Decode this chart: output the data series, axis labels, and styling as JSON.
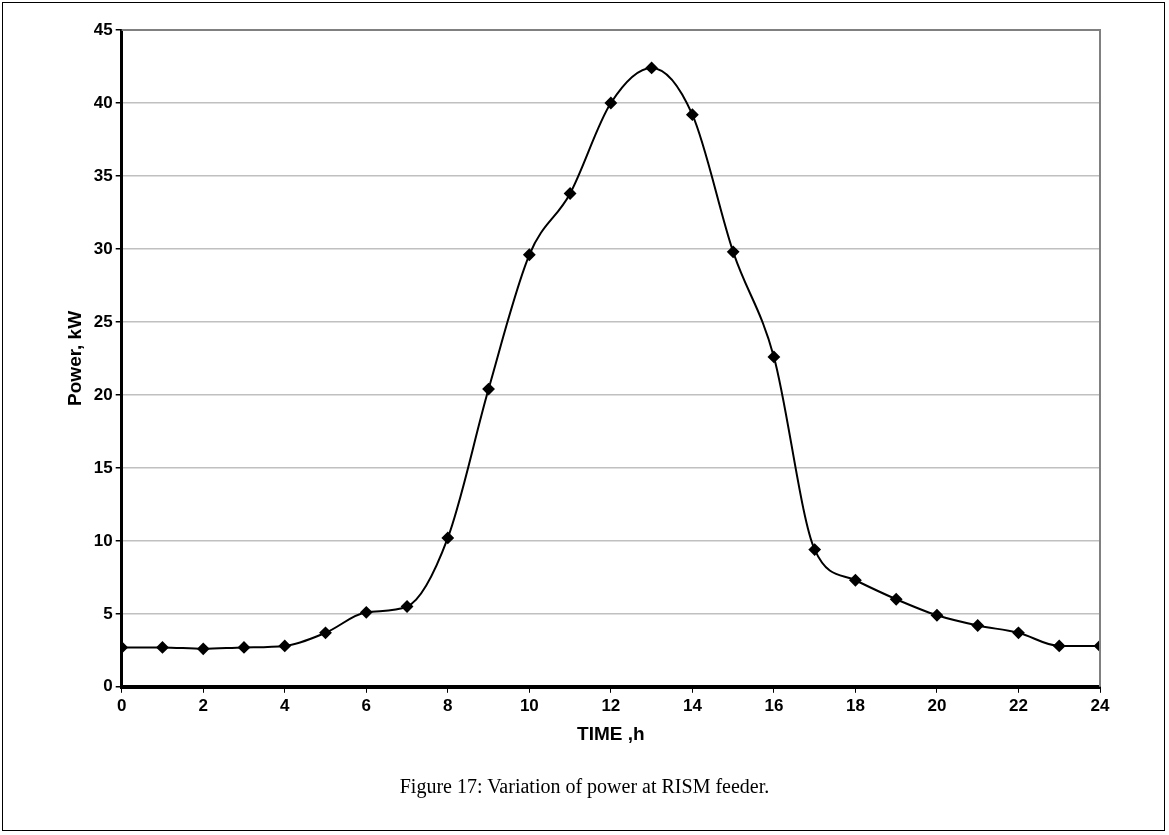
{
  "chart_data": {
    "type": "line",
    "xlabel": "TIME ,h",
    "ylabel": "Power, kW",
    "x": [
      0,
      1,
      2,
      3,
      4,
      5,
      6,
      7,
      8,
      9,
      10,
      11,
      12,
      13,
      14,
      15,
      16,
      17,
      18,
      19,
      20,
      21,
      22,
      23,
      24
    ],
    "series": [
      {
        "color": "#000000",
        "values": [
          2.7,
          2.7,
          2.6,
          2.7,
          2.8,
          3.7,
          5.1,
          5.5,
          10.2,
          20.4,
          29.6,
          33.8,
          40.0,
          42.4,
          39.2,
          29.8,
          22.6,
          9.4,
          7.3,
          6.0,
          4.9,
          4.2,
          3.7,
          2.8,
          2.8
        ]
      }
    ],
    "xlim": [
      0,
      24
    ],
    "xticks": [
      0,
      2,
      4,
      6,
      8,
      10,
      12,
      14,
      16,
      18,
      20,
      22,
      24
    ],
    "ylim": [
      0,
      45
    ],
    "yticks": [
      0,
      5,
      10,
      15,
      20,
      25,
      30,
      35,
      40,
      45
    ],
    "grid": "y",
    "marker": "diamond",
    "line_style": "solid",
    "annotations": [
      "Figure 17: Variation of power at RISM feeder."
    ]
  }
}
